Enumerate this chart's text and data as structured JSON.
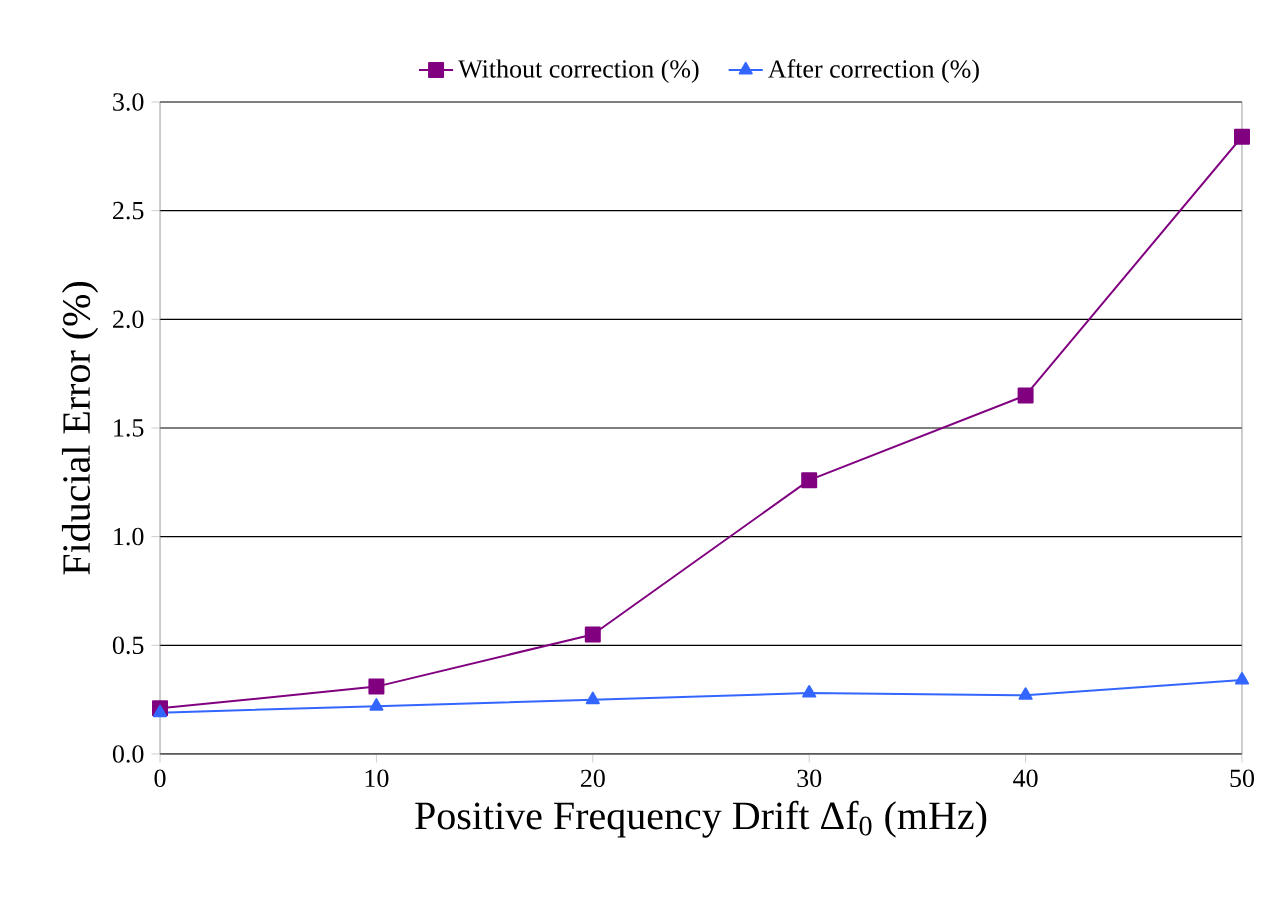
{
  "chart_data": {
    "type": "line",
    "xlabel": "Positive Frequency Drift Δf$_{0}$ (mHz)",
    "ylabel": "Fiducial Error (%)",
    "x": [
      0,
      10,
      20,
      30,
      40,
      50
    ],
    "series": [
      {
        "name": "Without correction (%)",
        "color": "#800080",
        "marker": "square",
        "values": [
          0.21,
          0.31,
          0.55,
          1.26,
          1.65,
          2.84
        ]
      },
      {
        "name": "After correction (%)",
        "color": "#3366ff",
        "marker": "triangle",
        "values": [
          0.19,
          0.22,
          0.25,
          0.28,
          0.27,
          0.34
        ]
      }
    ],
    "xlim": [
      0,
      50
    ],
    "xticks": [
      0,
      10,
      20,
      30,
      40,
      50
    ],
    "ylim": [
      0,
      3
    ],
    "yticks": [
      {
        "value": 0,
        "label": "0.0"
      },
      {
        "value": 0.5,
        "label": "0.5"
      },
      {
        "value": 1,
        "label": "1.0"
      },
      {
        "value": 1.5,
        "label": "1.5"
      },
      {
        "value": 2,
        "label": "2.0"
      },
      {
        "value": 2.5,
        "label": "2.5"
      },
      {
        "value": 3,
        "label": "3.0"
      }
    ],
    "grid": "y",
    "legend": "top",
    "line_style": "solid"
  }
}
